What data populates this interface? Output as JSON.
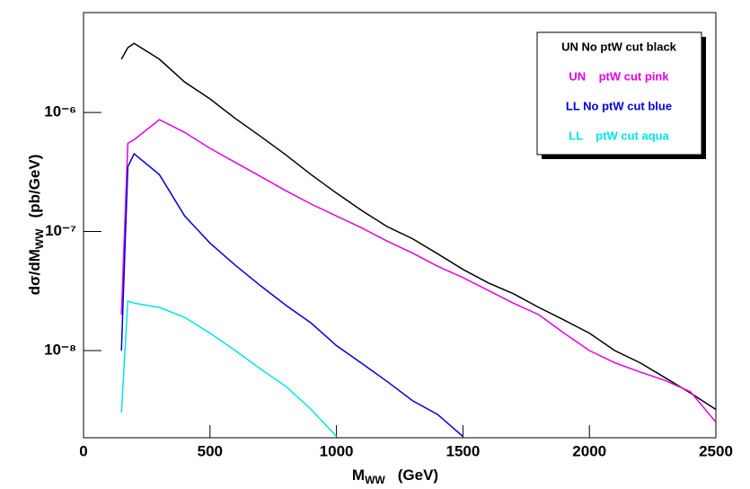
{
  "chart_data": {
    "type": "line",
    "step": false,
    "xlabel": "M",
    "xlabel_sub": "WW",
    "xlabel_unit": "(GeV)",
    "ylabel": "dσ/dM",
    "ylabel_sub": "WW",
    "ylabel_unit": "(pb/GeV)",
    "log_y": true,
    "x": [
      150,
      175,
      200,
      300,
      400,
      500,
      600,
      700,
      800,
      900,
      1000,
      1100,
      1200,
      1300,
      1400,
      1500,
      1600,
      1700,
      1800,
      1900,
      2000,
      2100,
      2200,
      2300,
      2400,
      2500
    ],
    "xlim": [
      0,
      2500
    ],
    "xticks": [
      0,
      500,
      1000,
      1500,
      2000,
      2500
    ],
    "ylim": [
      1.85e-09,
      6.9e-06
    ],
    "yticks": [
      {
        "value": 1e-08,
        "label": "10⁻⁸"
      },
      {
        "value": 1e-07,
        "label": "10⁻⁷"
      },
      {
        "value": 1e-06,
        "label": "10⁻⁶"
      }
    ],
    "series": [
      {
        "name": "UN No ptW cut black",
        "color": "#000000",
        "values": [
          2.8e-06,
          3.5e-06,
          3.8e-06,
          2.8e-06,
          1.8e-06,
          1.3e-06,
          8.9e-07,
          6.3e-07,
          4.4e-07,
          3e-07,
          2.1e-07,
          1.5e-07,
          1.1e-07,
          8.7e-08,
          6.5e-08,
          4.8e-08,
          3.7e-08,
          3e-08,
          2.3e-08,
          1.8e-08,
          1.4e-08,
          1e-08,
          7.9e-09,
          5.9e-09,
          4.4e-09,
          3.2e-09
        ]
      },
      {
        "name": "UN    ptW cut pink",
        "color": "#e600e6",
        "values": [
          2e-08,
          5.5e-07,
          5.9e-07,
          8.7e-07,
          6.8e-07,
          5e-07,
          3.8e-07,
          2.9e-07,
          2.2e-07,
          1.7e-07,
          1.35e-07,
          1.07e-07,
          8.3e-08,
          6.6e-08,
          5.1e-08,
          4.1e-08,
          3.2e-08,
          2.5e-08,
          2e-08,
          1.4e-08,
          1e-08,
          7.9e-09,
          6.6e-09,
          5.6e-09,
          4.5e-09,
          2.5e-09
        ]
      },
      {
        "name": "LL No ptW cut blue",
        "color": "#0000dd",
        "values": [
          1e-08,
          3.5e-07,
          4.5e-07,
          3e-07,
          1.35e-07,
          8e-08,
          5.2e-08,
          3.5e-08,
          2.4e-08,
          1.7e-08,
          1.1e-08,
          7.8e-09,
          5.5e-09,
          3.8e-09,
          2.9e-09,
          1.9e-09,
          null,
          null,
          null,
          null,
          null,
          null,
          null,
          null,
          null,
          null
        ]
      },
      {
        "name": "LL    ptW cut aqua",
        "color": "#00e5e5",
        "values": [
          3e-09,
          2.6e-08,
          2.5e-08,
          2.3e-08,
          1.9e-08,
          1.4e-08,
          1e-08,
          7e-09,
          5e-09,
          3.2e-09,
          1.9e-09,
          null,
          null,
          null,
          null,
          null,
          null,
          null,
          null,
          null,
          null,
          null,
          null,
          null,
          null,
          null
        ]
      }
    ]
  }
}
